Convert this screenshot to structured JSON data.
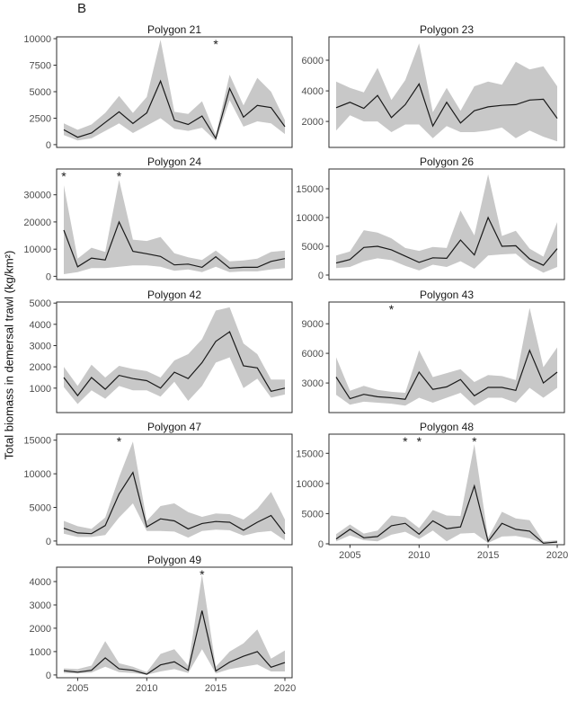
{
  "figure": {
    "label": "B",
    "y_axis_title": "Total biomass in demersal trawl (kg/km²)",
    "x_ticks": [
      2005,
      2010,
      2015,
      2020
    ],
    "asterisk_symbol": "*",
    "colors": {
      "line": "#1a1a1a",
      "ribbon": "#c8c8c8",
      "border": "#2e2e2e",
      "tick_text": "#4d4d4d",
      "title_text": "#1a1a1a"
    }
  },
  "chart_data": [
    {
      "type": "line",
      "title": "Polygon 21",
      "x": [
        2004,
        2005,
        2006,
        2007,
        2008,
        2009,
        2010,
        2011,
        2012,
        2013,
        2014,
        2015,
        2016,
        2017,
        2018,
        2019,
        2020
      ],
      "series": [
        {
          "name": "mean",
          "values": [
            1400,
            700,
            1100,
            2100,
            3100,
            2000,
            3000,
            6000,
            2300,
            1900,
            2700,
            600,
            5300,
            2600,
            3700,
            3500,
            1700
          ]
        },
        {
          "name": "lower",
          "values": [
            900,
            400,
            600,
            1300,
            2000,
            1100,
            1800,
            2500,
            1500,
            1300,
            1600,
            350,
            4200,
            1700,
            2200,
            2000,
            1000
          ]
        },
        {
          "name": "upper",
          "values": [
            2000,
            1400,
            1900,
            3000,
            4600,
            3000,
            4500,
            9900,
            3100,
            2900,
            4100,
            900,
            6600,
            3700,
            6300,
            5000,
            2300
          ]
        }
      ],
      "yticks": [
        0,
        2500,
        5000,
        7500,
        10000
      ],
      "ylim": [
        -260,
        10170
      ],
      "asterisk_years": [
        2015
      ]
    },
    {
      "type": "line",
      "title": "Polygon 23",
      "x": [
        2004,
        2005,
        2006,
        2007,
        2008,
        2009,
        2010,
        2011,
        2012,
        2013,
        2014,
        2015,
        2016,
        2017,
        2018,
        2019,
        2020
      ],
      "series": [
        {
          "name": "mean",
          "values": [
            2900,
            3250,
            2850,
            3700,
            2250,
            3100,
            4450,
            1700,
            3250,
            1900,
            2700,
            2950,
            3050,
            3100,
            3400,
            3450,
            2200
          ]
        },
        {
          "name": "lower",
          "values": [
            1400,
            2400,
            2000,
            2000,
            1300,
            1800,
            1800,
            900,
            1700,
            1300,
            1300,
            1400,
            1600,
            900,
            1400,
            1000,
            700
          ]
        },
        {
          "name": "upper",
          "values": [
            4600,
            4200,
            3900,
            5500,
            3400,
            4700,
            7100,
            2600,
            4200,
            2700,
            4300,
            4600,
            4400,
            5900,
            5400,
            5600,
            4300
          ]
        }
      ],
      "yticks": [
        2000,
        4000,
        6000
      ],
      "ylim": [
        300,
        7530
      ],
      "asterisk_years": []
    },
    {
      "type": "line",
      "title": "Polygon 24",
      "x": [
        2004,
        2005,
        2006,
        2007,
        2008,
        2009,
        2010,
        2011,
        2012,
        2013,
        2014,
        2015,
        2016,
        2017,
        2018,
        2019,
        2020
      ],
      "series": [
        {
          "name": "mean",
          "values": [
            17000,
            3500,
            6700,
            6000,
            20000,
            9200,
            8300,
            7300,
            4200,
            4500,
            3300,
            7200,
            3000,
            3300,
            3300,
            5500,
            6500
          ]
        },
        {
          "name": "lower",
          "values": [
            800,
            1500,
            3000,
            3000,
            3500,
            4000,
            4000,
            3500,
            2000,
            2500,
            1500,
            3500,
            1500,
            1800,
            1800,
            2500,
            3000
          ]
        },
        {
          "name": "upper",
          "values": [
            33500,
            6500,
            10500,
            9000,
            35500,
            13500,
            13000,
            14500,
            8500,
            7000,
            6000,
            9500,
            5500,
            5800,
            6500,
            9000,
            9500
          ]
        }
      ],
      "yticks": [
        0,
        10000,
        20000,
        30000
      ],
      "ylim": [
        -1200,
        39500
      ],
      "asterisk_years": [
        2004,
        2008
      ]
    },
    {
      "type": "line",
      "title": "Polygon 26",
      "x": [
        2004,
        2005,
        2006,
        2007,
        2008,
        2009,
        2010,
        2011,
        2012,
        2013,
        2014,
        2015,
        2016,
        2017,
        2018,
        2019,
        2020
      ],
      "series": [
        {
          "name": "mean",
          "values": [
            2100,
            2700,
            4800,
            5000,
            4400,
            3300,
            2200,
            3000,
            2900,
            6100,
            3500,
            10000,
            5000,
            5100,
            2800,
            1700,
            4600
          ]
        },
        {
          "name": "lower",
          "values": [
            1200,
            1400,
            2400,
            2900,
            2600,
            1600,
            800,
            1800,
            1400,
            2400,
            1100,
            3400,
            3600,
            3700,
            1700,
            400,
            1400
          ]
        },
        {
          "name": "upper",
          "values": [
            3400,
            4100,
            7800,
            7400,
            6400,
            4700,
            4200,
            4900,
            4700,
            11200,
            6900,
            17500,
            6800,
            7700,
            4600,
            3200,
            9200
          ]
        }
      ],
      "yticks": [
        0,
        5000,
        10000,
        15000
      ],
      "ylim": [
        -780,
        18440
      ],
      "asterisk_years": []
    },
    {
      "type": "line",
      "title": "Polygon 42",
      "x": [
        2004,
        2005,
        2006,
        2007,
        2008,
        2009,
        2010,
        2011,
        2012,
        2013,
        2014,
        2015,
        2016,
        2017,
        2018,
        2019,
        2020
      ],
      "series": [
        {
          "name": "mean",
          "values": [
            1500,
            650,
            1500,
            950,
            1600,
            1450,
            1350,
            1000,
            1750,
            1450,
            2200,
            3200,
            3650,
            2050,
            1950,
            850,
            1000
          ]
        },
        {
          "name": "lower",
          "values": [
            1050,
            250,
            900,
            500,
            1100,
            900,
            900,
            600,
            1300,
            400,
            1100,
            2200,
            2450,
            1000,
            1450,
            550,
            700
          ]
        },
        {
          "name": "upper",
          "values": [
            2000,
            1100,
            2100,
            1500,
            2050,
            1900,
            1800,
            1500,
            2300,
            2600,
            3300,
            4650,
            4800,
            3100,
            2600,
            1400,
            1400
          ]
        }
      ],
      "yticks": [
        1000,
        2000,
        3000,
        4000,
        5000
      ],
      "ylim": [
        -150,
        5050
      ],
      "asterisk_years": []
    },
    {
      "type": "line",
      "title": "Polygon 43",
      "x": [
        2004,
        2005,
        2006,
        2007,
        2008,
        2009,
        2010,
        2011,
        2012,
        2013,
        2014,
        2015,
        2016,
        2017,
        2018,
        2019,
        2020
      ],
      "series": [
        {
          "name": "mean",
          "values": [
            3600,
            1400,
            1850,
            1600,
            1500,
            1350,
            4100,
            2350,
            2600,
            3350,
            1700,
            2550,
            2550,
            2250,
            6300,
            3000,
            4100
          ]
        },
        {
          "name": "lower",
          "values": [
            1800,
            800,
            1100,
            1000,
            900,
            700,
            1500,
            1000,
            1500,
            2000,
            700,
            1500,
            1500,
            1000,
            2500,
            1500,
            2500
          ]
        },
        {
          "name": "upper",
          "values": [
            5600,
            2200,
            2700,
            2300,
            2100,
            2000,
            6300,
            3600,
            4000,
            4400,
            3100,
            3800,
            3700,
            3300,
            10600,
            4600,
            6600
          ]
        }
      ],
      "yticks": [
        3000,
        6000,
        9000
      ],
      "ylim": [
        0,
        11200
      ],
      "asterisk_years": [
        2008
      ]
    },
    {
      "type": "line",
      "title": "Polygon 47",
      "x": [
        2004,
        2005,
        2006,
        2007,
        2008,
        2009,
        2010,
        2011,
        2012,
        2013,
        2014,
        2015,
        2016,
        2017,
        2018,
        2019,
        2020
      ],
      "series": [
        {
          "name": "mean",
          "values": [
            1900,
            1200,
            1100,
            2300,
            7000,
            10200,
            2100,
            3300,
            3000,
            1800,
            2600,
            2900,
            2800,
            1600,
            2800,
            3800,
            1100
          ]
        },
        {
          "name": "lower",
          "values": [
            1100,
            600,
            600,
            900,
            3500,
            5600,
            1500,
            1500,
            1400,
            500,
            1500,
            1700,
            1600,
            800,
            1300,
            1500,
            100
          ]
        },
        {
          "name": "upper",
          "values": [
            3000,
            2200,
            1800,
            3500,
            9500,
            14800,
            3000,
            5200,
            5600,
            4300,
            3600,
            4100,
            4000,
            3200,
            4800,
            7300,
            3200
          ]
        }
      ],
      "yticks": [
        0,
        5000,
        10000,
        15000
      ],
      "ylim": [
        -550,
        15900
      ],
      "asterisk_years": [
        2008
      ]
    },
    {
      "type": "line",
      "title": "Polygon 48",
      "x": [
        2004,
        2005,
        2006,
        2007,
        2008,
        2009,
        2010,
        2011,
        2012,
        2013,
        2014,
        2015,
        2016,
        2017,
        2018,
        2019,
        2020
      ],
      "series": [
        {
          "name": "mean",
          "values": [
            800,
            2400,
            1000,
            1200,
            3000,
            3400,
            1600,
            3800,
            2500,
            2800,
            9600,
            400,
            3400,
            2400,
            2100,
            100,
            300
          ]
        },
        {
          "name": "lower",
          "values": [
            400,
            1400,
            600,
            400,
            1500,
            2000,
            800,
            2200,
            400,
            1700,
            1800,
            150,
            1200,
            1300,
            900,
            0,
            100
          ]
        },
        {
          "name": "upper",
          "values": [
            1600,
            3200,
            1700,
            2200,
            4700,
            4400,
            2600,
            5600,
            4700,
            4600,
            16500,
            1000,
            5300,
            4200,
            3900,
            400,
            600
          ]
        }
      ],
      "yticks": [
        0,
        5000,
        10000,
        15000
      ],
      "ylim": [
        -150,
        18180
      ],
      "asterisk_years": [
        2009,
        2010,
        2014
      ]
    },
    {
      "type": "line",
      "title": "Polygon 49",
      "x": [
        2004,
        2005,
        2006,
        2007,
        2008,
        2009,
        2010,
        2011,
        2012,
        2013,
        2014,
        2015,
        2016,
        2017,
        2018,
        2019,
        2020
      ],
      "series": [
        {
          "name": "mean",
          "values": [
            180,
            120,
            200,
            730,
            260,
            200,
            30,
            430,
            560,
            200,
            2750,
            170,
            550,
            800,
            1000,
            330,
            530
          ]
        },
        {
          "name": "lower",
          "values": [
            80,
            60,
            100,
            350,
            120,
            80,
            10,
            150,
            250,
            80,
            1100,
            60,
            250,
            350,
            450,
            150,
            150
          ]
        },
        {
          "name": "upper",
          "values": [
            280,
            250,
            400,
            1450,
            500,
            350,
            120,
            900,
            1100,
            400,
            4300,
            350,
            1000,
            1350,
            1950,
            700,
            1050
          ]
        }
      ],
      "yticks": [
        0,
        1000,
        2000,
        3000,
        4000
      ],
      "ylim": [
        -120,
        4615
      ],
      "asterisk_years": [
        2014
      ]
    }
  ]
}
